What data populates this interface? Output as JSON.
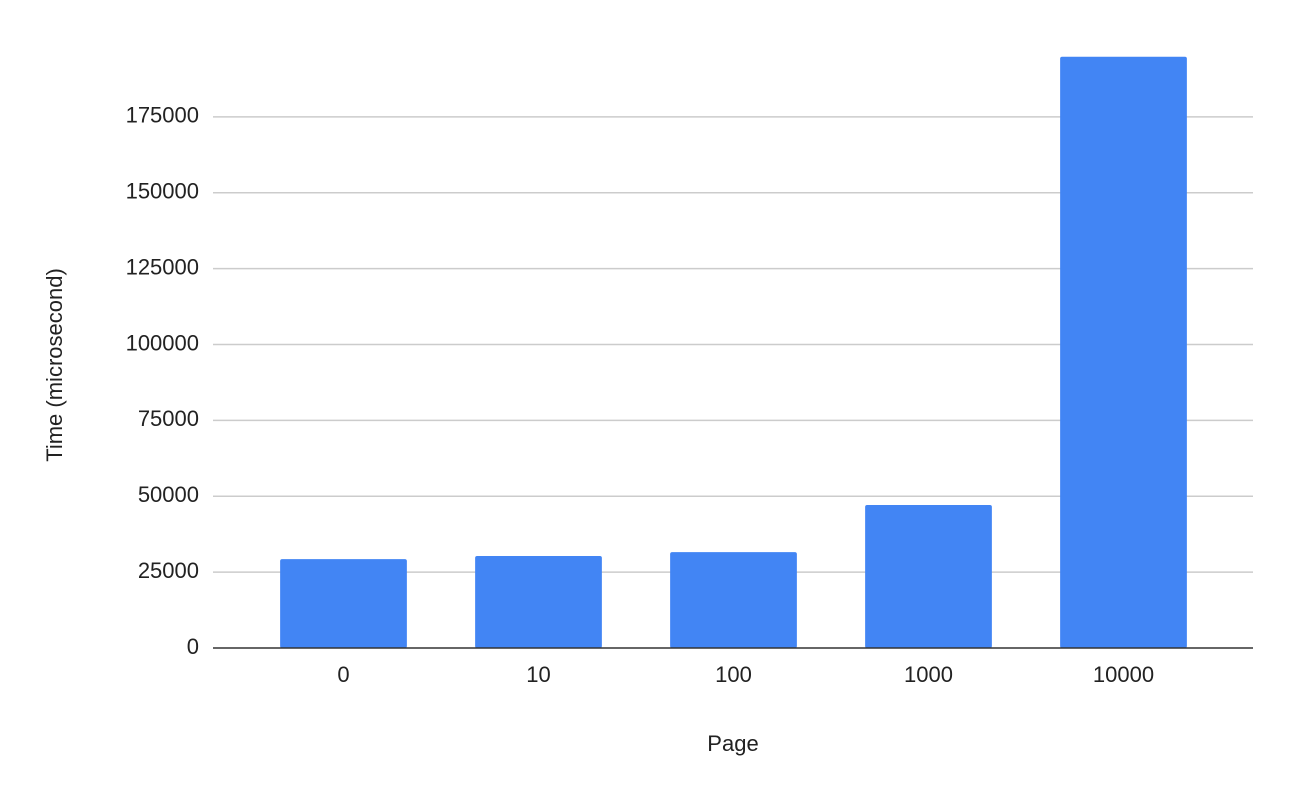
{
  "chart_data": {
    "type": "bar",
    "x_label": "Page",
    "y_label": "Time (microsecond)",
    "categories": [
      "0",
      "10",
      "100",
      "1000",
      "10000"
    ],
    "values": [
      29300,
      30300,
      31600,
      47100,
      194800
    ],
    "color": "#4285f4",
    "ylim": [
      0,
      200000
    ],
    "yticks": [
      0,
      25000,
      50000,
      75000,
      100000,
      125000,
      150000,
      175000
    ],
    "grid": true
  }
}
